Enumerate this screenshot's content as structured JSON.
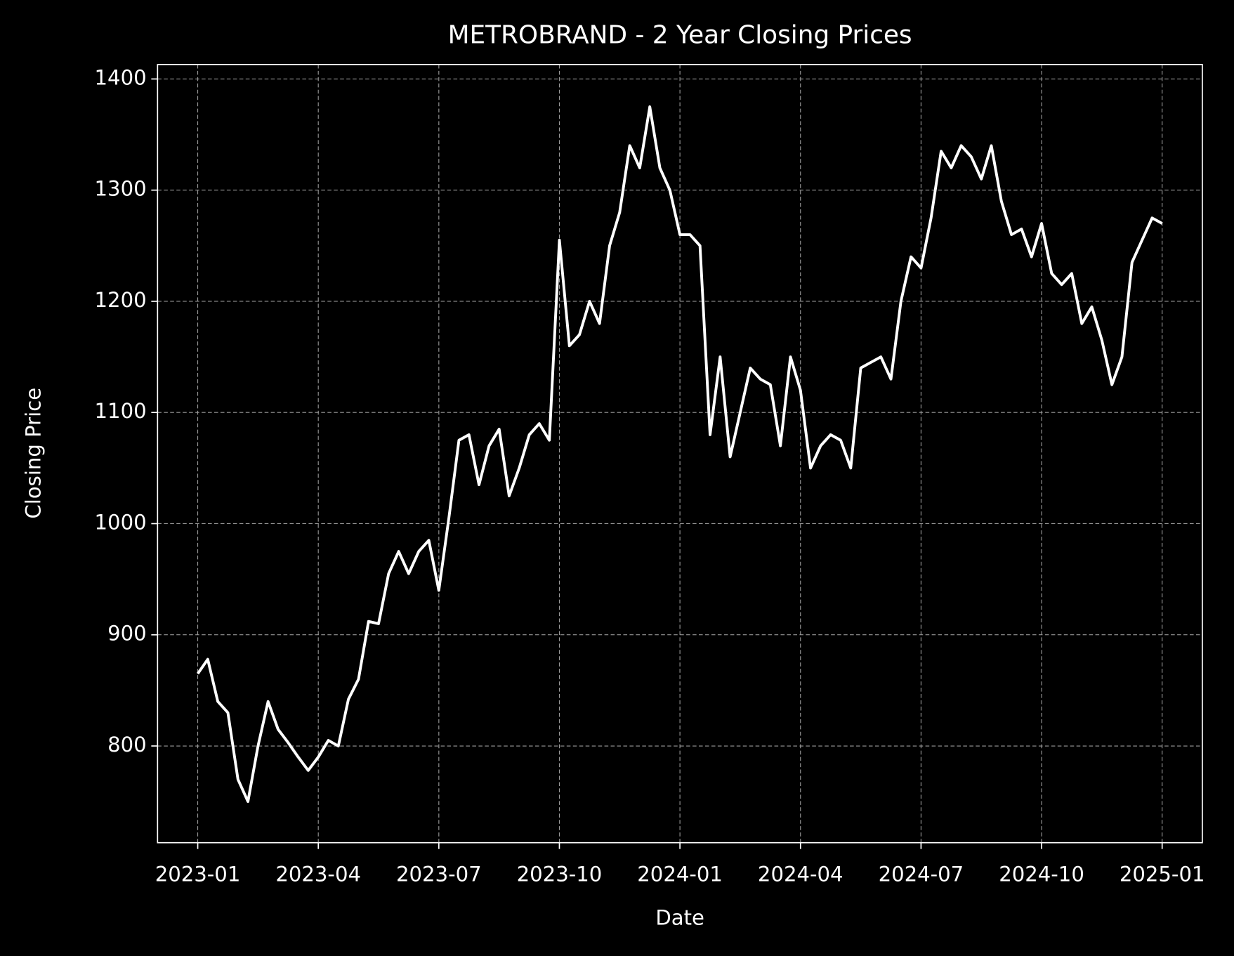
{
  "chart_data": {
    "type": "line",
    "title": "METROBRAND - 2 Year Closing Prices",
    "x_label": "Date",
    "y_label": "Closing Price",
    "color": "#ffffff",
    "grid": true,
    "x": [
      "2023-01",
      "2023-01",
      "2023-01",
      "2023-01",
      "2023-02",
      "2023-02",
      "2023-02",
      "2023-02",
      "2023-03",
      "2023-03",
      "2023-03",
      "2023-03",
      "2023-04",
      "2023-04",
      "2023-04",
      "2023-04",
      "2023-05",
      "2023-05",
      "2023-05",
      "2023-05",
      "2023-06",
      "2023-06",
      "2023-06",
      "2023-06",
      "2023-07",
      "2023-07",
      "2023-07",
      "2023-07",
      "2023-08",
      "2023-08",
      "2023-08",
      "2023-08",
      "2023-09",
      "2023-09",
      "2023-09",
      "2023-09",
      "2023-10",
      "2023-10",
      "2023-10",
      "2023-10",
      "2023-11",
      "2023-11",
      "2023-11",
      "2023-11",
      "2023-12",
      "2023-12",
      "2023-12",
      "2023-12",
      "2024-01",
      "2024-01",
      "2024-01",
      "2024-01",
      "2024-02",
      "2024-02",
      "2024-02",
      "2024-02",
      "2024-03",
      "2024-03",
      "2024-03",
      "2024-03",
      "2024-04",
      "2024-04",
      "2024-04",
      "2024-04",
      "2024-05",
      "2024-05",
      "2024-05",
      "2024-05",
      "2024-06",
      "2024-06",
      "2024-06",
      "2024-06",
      "2024-07",
      "2024-07",
      "2024-07",
      "2024-07",
      "2024-08",
      "2024-08",
      "2024-08",
      "2024-08",
      "2024-09",
      "2024-09",
      "2024-09",
      "2024-09",
      "2024-10",
      "2024-10",
      "2024-10",
      "2024-10",
      "2024-11",
      "2024-11",
      "2024-11",
      "2024-11",
      "2024-12",
      "2024-12",
      "2024-12",
      "2024-12",
      "2025-01"
    ],
    "values": [
      865,
      878,
      840,
      830,
      770,
      750,
      800,
      840,
      815,
      803,
      790,
      778,
      790,
      805,
      800,
      842,
      860,
      912,
      910,
      955,
      975,
      955,
      975,
      985,
      940,
      1005,
      1075,
      1080,
      1035,
      1070,
      1085,
      1025,
      1050,
      1080,
      1090,
      1075,
      1255,
      1160,
      1170,
      1200,
      1180,
      1250,
      1280,
      1340,
      1320,
      1375,
      1320,
      1300,
      1260,
      1260,
      1250,
      1080,
      1150,
      1060,
      1100,
      1140,
      1130,
      1125,
      1070,
      1150,
      1120,
      1050,
      1070,
      1080,
      1075,
      1050,
      1140,
      1145,
      1150,
      1130,
      1200,
      1240,
      1230,
      1275,
      1335,
      1320,
      1340,
      1330,
      1310,
      1340,
      1290,
      1260,
      1265,
      1240,
      1270,
      1225,
      1215,
      1225,
      1180,
      1195,
      1165,
      1125,
      1150,
      1235,
      1255,
      1275,
      1270
    ],
    "xlim": [
      "2022-12",
      "2025-02"
    ],
    "xticks": [
      "2023-01",
      "2023-04",
      "2023-07",
      "2023-10",
      "2024-01",
      "2024-04",
      "2024-07",
      "2024-10",
      "2025-01"
    ],
    "ylim": [
      713,
      1413
    ],
    "yticks": [
      800,
      900,
      1000,
      1100,
      1200,
      1300,
      1400
    ]
  }
}
